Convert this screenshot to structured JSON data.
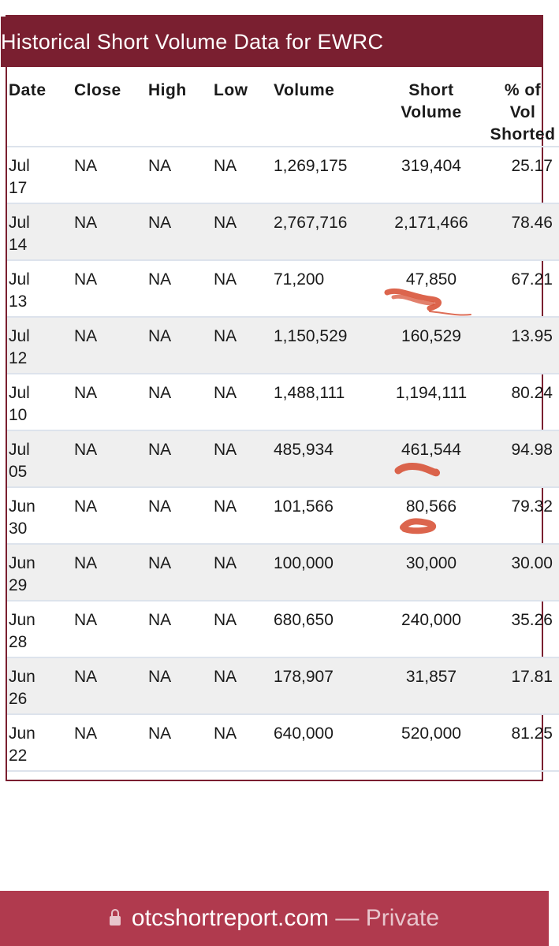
{
  "header": {
    "title": "Historical Short Volume Data for EWRC"
  },
  "table": {
    "columns": {
      "date": "Date",
      "close": "Close",
      "high": "High",
      "low": "Low",
      "volume": "Volume",
      "short_l1": "Short",
      "short_l2": "Volume",
      "pct_l1": "% of",
      "pct_l2": "Vol",
      "pct_l3": "Shorted"
    },
    "rows": [
      {
        "month": "Jul",
        "day": "17",
        "close": "NA",
        "high": "NA",
        "low": "NA",
        "volume": "1,269,175",
        "short": "319,404",
        "pct": "25.17"
      },
      {
        "month": "Jul",
        "day": "14",
        "close": "NA",
        "high": "NA",
        "low": "NA",
        "volume": "2,767,716",
        "short": "2,171,466",
        "pct": "78.46"
      },
      {
        "month": "Jul",
        "day": "13",
        "close": "NA",
        "high": "NA",
        "low": "NA",
        "volume": "71,200",
        "short": "47,850",
        "pct": "67.21"
      },
      {
        "month": "Jul",
        "day": "12",
        "close": "NA",
        "high": "NA",
        "low": "NA",
        "volume": "1,150,529",
        "short": "160,529",
        "pct": "13.95"
      },
      {
        "month": "Jul",
        "day": "10",
        "close": "NA",
        "high": "NA",
        "low": "NA",
        "volume": "1,488,111",
        "short": "1,194,111",
        "pct": "80.24"
      },
      {
        "month": "Jul",
        "day": "05",
        "close": "NA",
        "high": "NA",
        "low": "NA",
        "volume": "485,934",
        "short": "461,544",
        "pct": "94.98"
      },
      {
        "month": "Jun",
        "day": "30",
        "close": "NA",
        "high": "NA",
        "low": "NA",
        "volume": "101,566",
        "short": "80,566",
        "pct": "79.32"
      },
      {
        "month": "Jun",
        "day": "29",
        "close": "NA",
        "high": "NA",
        "low": "NA",
        "volume": "100,000",
        "short": "30,000",
        "pct": "30.00"
      },
      {
        "month": "Jun",
        "day": "28",
        "close": "NA",
        "high": "NA",
        "low": "NA",
        "volume": "680,650",
        "short": "240,000",
        "pct": "35.26"
      },
      {
        "month": "Jun",
        "day": "26",
        "close": "NA",
        "high": "NA",
        "low": "NA",
        "volume": "178,907",
        "short": "31,857",
        "pct": "17.81"
      },
      {
        "month": "Jun",
        "day": "22",
        "close": "NA",
        "high": "NA",
        "low": "NA",
        "volume": "640,000",
        "short": "520,000",
        "pct": "81.25"
      }
    ]
  },
  "browser_bar": {
    "lock_icon": "lock-icon",
    "domain": "otcshortreport.com",
    "separator": " — ",
    "mode": "Private"
  },
  "colors": {
    "header_bg": "#7a1f30",
    "bottom_bar_bg": "#b03a4e",
    "row_alt_bg": "#efefef",
    "scribble": "#d64a2e"
  }
}
